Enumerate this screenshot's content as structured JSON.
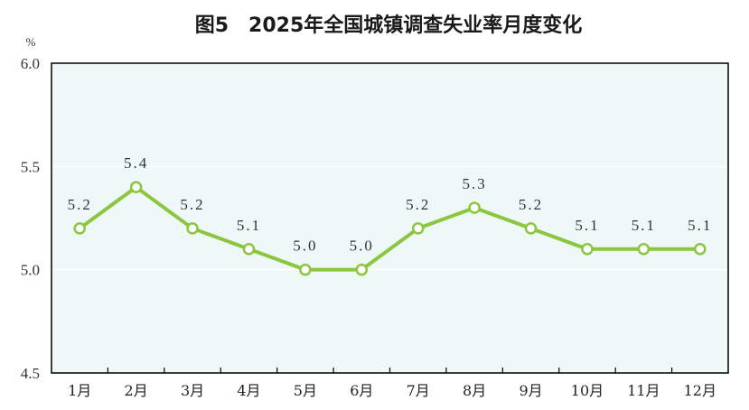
{
  "chart_data": {
    "type": "line",
    "title": "图5　2025年全国城镇调查失业率月度变化",
    "ylabel": "%",
    "xlabel": "",
    "categories": [
      "1月",
      "2月",
      "3月",
      "4月",
      "5月",
      "6月",
      "7月",
      "8月",
      "9月",
      "10月",
      "11月",
      "12月"
    ],
    "series": [
      {
        "values": [
          5.2,
          5.4,
          5.2,
          5.1,
          5.0,
          5.0,
          5.2,
          5.3,
          5.2,
          5.1,
          5.1,
          5.1
        ]
      }
    ],
    "data_labels": [
      "5.2",
      "5.4",
      "5.2",
      "5.1",
      "5.0",
      "5.0",
      "5.2",
      "5.3",
      "5.2",
      "5.1",
      "5.1",
      "5.1"
    ],
    "yticks": [
      "4.5",
      "5.0",
      "5.5",
      "6.0"
    ],
    "ylim": [
      4.5,
      6.0
    ],
    "grid": true,
    "colors": {
      "line": "#8cc63f",
      "plot_bg": "#edf8f7",
      "grid": "#ffffff",
      "axis": "#000000"
    }
  }
}
